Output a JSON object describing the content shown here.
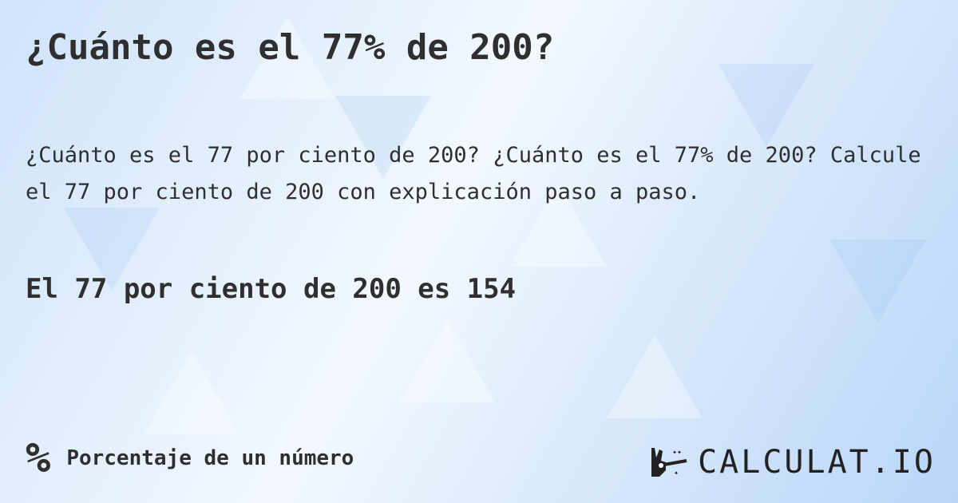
{
  "title": "¿Cuánto es el 77% de 200?",
  "description": "¿Cuánto es el 77 por ciento de 200? ¿Cuánto es el 77% de 200? Calcule el 77 por ciento de 200 con explicación paso a paso.",
  "answer": "El 77 por ciento de 200 es 154",
  "footer": {
    "icon": "percent-icon",
    "category": "Porcentaje de un número"
  },
  "logo": {
    "text": "CALCULAT.IO",
    "icon": "magic-hand-wand-icon"
  }
}
